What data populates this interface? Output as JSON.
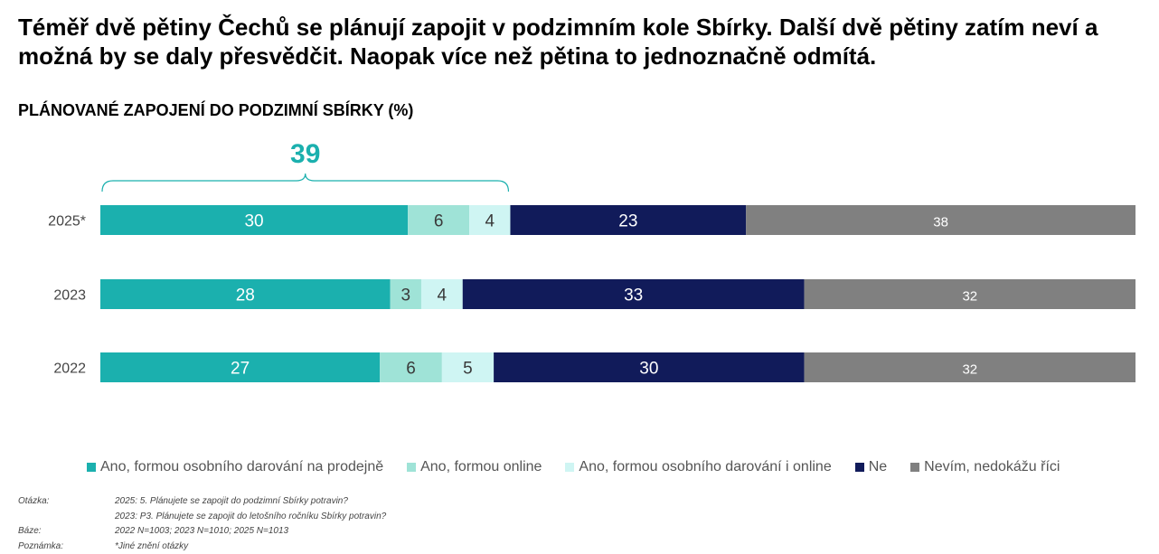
{
  "headline": "Téměř dvě pětiny Čechů se plánují zapojit v podzimním kole Sbírky. Další dvě pětiny zatím neví a možná by se daly přesvědčit. Naopak více než pětina to jednoznačně odmítá.",
  "colors": {
    "series": [
      "#1BB0AE",
      "#9FE3D7",
      "#CFF5F3",
      "#111B5A",
      "#808080"
    ],
    "bracket": "#1BB0AE"
  },
  "chart_data": {
    "type": "bar",
    "orientation": "horizontal",
    "stacked": true,
    "title": "PLÁNOVANÉ ZAPOJENÍ DO PODZIMNÍ SBÍRKY (%)",
    "categories": [
      "2025*",
      "2023",
      "2022"
    ],
    "series": [
      {
        "name": "Ano, formou osobního darování na prodejně",
        "values": [
          30,
          28,
          27
        ]
      },
      {
        "name": "Ano, formou online",
        "values": [
          6,
          3,
          6
        ]
      },
      {
        "name": "Ano, formou osobního darování i online",
        "values": [
          4,
          4,
          5
        ]
      },
      {
        "name": "Ne",
        "values": [
          23,
          33,
          30
        ]
      },
      {
        "name": "Nevím, nedokážu říci",
        "values": [
          38,
          32,
          32
        ]
      }
    ],
    "annotation": {
      "label": "39",
      "category": "2025*",
      "series_span": [
        0,
        2
      ]
    },
    "legend_position": "bottom",
    "grid": false
  },
  "notes": [
    {
      "label": "Otázka:",
      "text": "2025: 5. Plánujete se zapojit do podzimní Sbírky potravin?"
    },
    {
      "label": "",
      "text": "2023: P3. Plánujete se zapojit do letošního ročníku Sbírky potravin?"
    },
    {
      "label": "Báze:",
      "text": "2022 N=1003; 2023 N=1010; 2025 N=1013"
    },
    {
      "label": "Poznámka:",
      "text": "*Jiné znění otázky"
    }
  ]
}
